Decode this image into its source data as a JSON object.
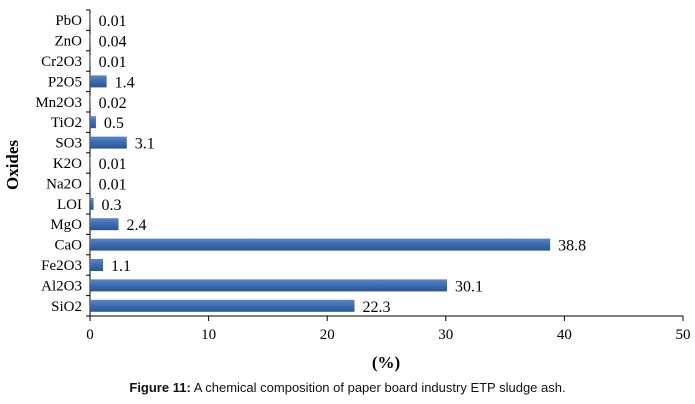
{
  "chart_data": {
    "type": "bar",
    "orientation": "horizontal",
    "categories": [
      "SiO2",
      "Al2O3",
      "Fe2O3",
      "CaO",
      "MgO",
      "LOI",
      "Na2O",
      "K2O",
      "SO3",
      "TiO2",
      "Mn2O3",
      "P2O5",
      "Cr2O3",
      "ZnO",
      "PbO"
    ],
    "values": [
      22.3,
      30.1,
      1.1,
      38.8,
      2.4,
      0.3,
      0.01,
      0.01,
      3.1,
      0.5,
      0.02,
      1.4,
      0.01,
      0.04,
      0.01
    ],
    "value_labels": [
      "22.3",
      "30.1",
      "1.1",
      "38.8",
      "2.4",
      "0.3",
      "0.01",
      "0.01",
      "3.1",
      "0.5",
      "0.02",
      "1.4",
      "0.01",
      "0.04",
      "0.01"
    ],
    "xlabel": "(%)",
    "ylabel": "Oxides",
    "xlim": [
      0,
      50
    ],
    "xticks": [
      "0",
      "10",
      "20",
      "30",
      "40",
      "50"
    ],
    "grid": false,
    "bar_color": "#3a6ab0"
  },
  "caption": {
    "label": "Figure 11:",
    "text": " A chemical composition of paper board industry ETP sludge ash."
  }
}
